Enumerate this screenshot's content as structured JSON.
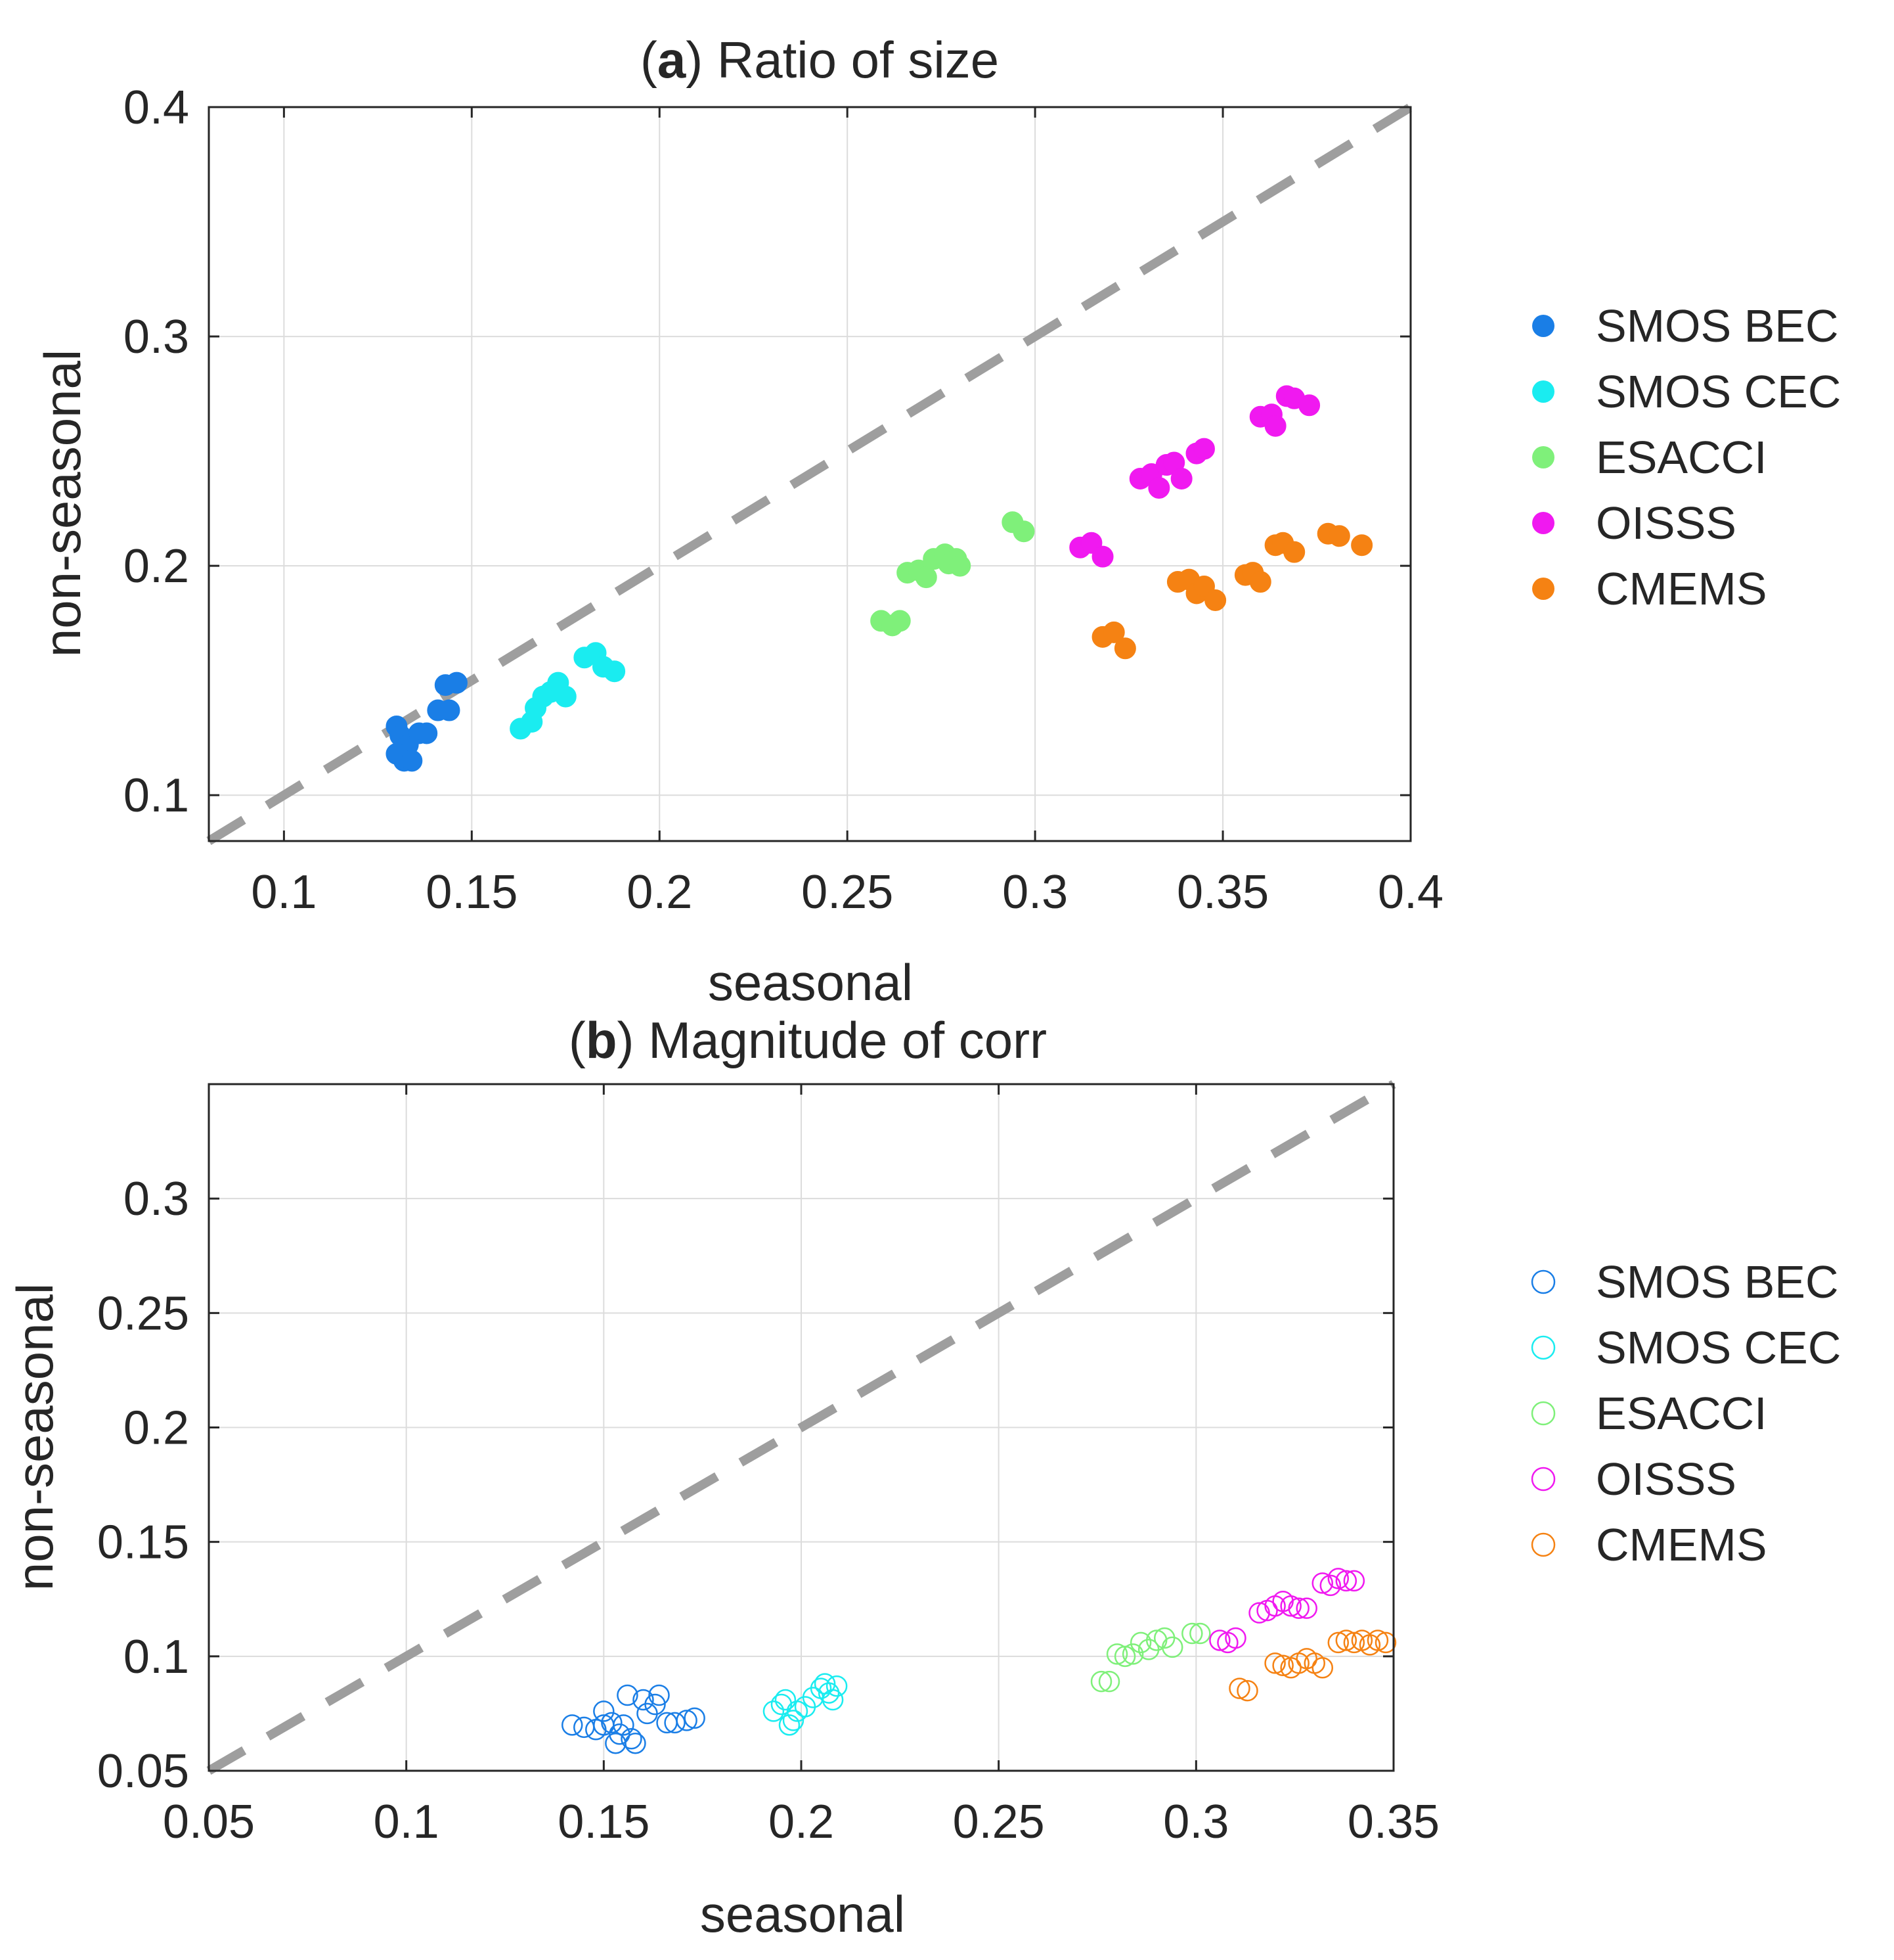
{
  "chart_data": [
    {
      "type": "scatter",
      "title_letter": "a",
      "title_rest": ") Ratio of size",
      "title_open": "(",
      "xlabel": "seasonal",
      "ylabel": "non-seasonal",
      "xlim": [
        0.08,
        0.4
      ],
      "ylim": [
        0.08,
        0.4
      ],
      "xticks": [
        0.1,
        0.15,
        0.2,
        0.25,
        0.3,
        0.35,
        0.4
      ],
      "xtick_labels": [
        "0.1",
        "0.15",
        "0.2",
        "0.25",
        "0.3",
        "0.35",
        "0.4"
      ],
      "yticks": [
        0.1,
        0.2,
        0.3,
        0.4
      ],
      "ytick_labels": [
        "0.1",
        "0.2",
        "0.3",
        "0.4"
      ],
      "grid": true,
      "marker": "filled",
      "reference_line": {
        "style": "dashed",
        "color": "#9e9e9e",
        "slope": 1
      },
      "legend_position": "right",
      "series": [
        {
          "name": "SMOS BEC",
          "color": "#1a7ee6",
          "points": [
            [
              0.13,
              0.13
            ],
            [
              0.131,
              0.126
            ],
            [
              0.133,
              0.122
            ],
            [
              0.13,
              0.118
            ],
            [
              0.132,
              0.115
            ],
            [
              0.134,
              0.115
            ],
            [
              0.136,
              0.127
            ],
            [
              0.138,
              0.127
            ],
            [
              0.141,
              0.137
            ],
            [
              0.144,
              0.137
            ],
            [
              0.143,
              0.148
            ],
            [
              0.146,
              0.149
            ]
          ]
        },
        {
          "name": "SMOS CEC",
          "color": "#1aecf0",
          "points": [
            [
              0.163,
              0.129
            ],
            [
              0.166,
              0.132
            ],
            [
              0.167,
              0.138
            ],
            [
              0.169,
              0.143
            ],
            [
              0.171,
              0.145
            ],
            [
              0.173,
              0.149
            ],
            [
              0.175,
              0.143
            ],
            [
              0.18,
              0.16
            ],
            [
              0.183,
              0.162
            ],
            [
              0.185,
              0.156
            ],
            [
              0.188,
              0.154
            ]
          ]
        },
        {
          "name": "ESACCI",
          "color": "#7ff07a",
          "points": [
            [
              0.259,
              0.176
            ],
            [
              0.262,
              0.174
            ],
            [
              0.264,
              0.176
            ],
            [
              0.266,
              0.197
            ],
            [
              0.269,
              0.198
            ],
            [
              0.271,
              0.195
            ],
            [
              0.273,
              0.203
            ],
            [
              0.276,
              0.205
            ],
            [
              0.277,
              0.201
            ],
            [
              0.279,
              0.203
            ],
            [
              0.28,
              0.2
            ],
            [
              0.294,
              0.219
            ],
            [
              0.297,
              0.215
            ]
          ]
        },
        {
          "name": "OISSS",
          "color": "#f019f0",
          "points": [
            [
              0.312,
              0.208
            ],
            [
              0.315,
              0.21
            ],
            [
              0.318,
              0.204
            ],
            [
              0.328,
              0.238
            ],
            [
              0.331,
              0.24
            ],
            [
              0.333,
              0.234
            ],
            [
              0.335,
              0.244
            ],
            [
              0.337,
              0.245
            ],
            [
              0.339,
              0.238
            ],
            [
              0.343,
              0.249
            ],
            [
              0.345,
              0.251
            ],
            [
              0.36,
              0.265
            ],
            [
              0.363,
              0.266
            ],
            [
              0.364,
              0.261
            ],
            [
              0.367,
              0.274
            ],
            [
              0.369,
              0.273
            ],
            [
              0.373,
              0.27
            ]
          ]
        },
        {
          "name": "CMEMS",
          "color": "#f58213",
          "points": [
            [
              0.318,
              0.169
            ],
            [
              0.321,
              0.171
            ],
            [
              0.324,
              0.164
            ],
            [
              0.338,
              0.193
            ],
            [
              0.341,
              0.194
            ],
            [
              0.343,
              0.188
            ],
            [
              0.345,
              0.191
            ],
            [
              0.348,
              0.185
            ],
            [
              0.356,
              0.196
            ],
            [
              0.358,
              0.197
            ],
            [
              0.36,
              0.193
            ],
            [
              0.364,
              0.209
            ],
            [
              0.366,
              0.21
            ],
            [
              0.369,
              0.206
            ],
            [
              0.378,
              0.214
            ],
            [
              0.381,
              0.213
            ],
            [
              0.387,
              0.209
            ]
          ]
        }
      ]
    },
    {
      "type": "scatter",
      "title_letter": "b",
      "title_rest": ") Magnitude of corr",
      "title_open": "(",
      "xlabel": "seasonal",
      "ylabel": "non-seasonal",
      "xlim": [
        0.05,
        0.35
      ],
      "ylim": [
        0.05,
        0.35
      ],
      "xticks": [
        0.05,
        0.1,
        0.15,
        0.2,
        0.25,
        0.3,
        0.35
      ],
      "xtick_labels": [
        "0.05",
        "0.1",
        "0.15",
        "0.2",
        "0.25",
        "0.3",
        "0.35"
      ],
      "yticks": [
        0.05,
        0.1,
        0.15,
        0.2,
        0.25,
        0.3
      ],
      "ytick_labels": [
        "0.05",
        "0.1",
        "0.15",
        "0.2",
        "0.25",
        "0.3"
      ],
      "grid": true,
      "marker": "open",
      "reference_line": {
        "style": "dashed",
        "color": "#9e9e9e",
        "slope": 1
      },
      "legend_position": "right",
      "series": [
        {
          "name": "SMOS BEC",
          "color": "#1a7ee6",
          "points": [
            [
              0.142,
              0.07
            ],
            [
              0.145,
              0.069
            ],
            [
              0.148,
              0.068
            ],
            [
              0.15,
              0.07
            ],
            [
              0.15,
              0.076
            ],
            [
              0.152,
              0.071
            ],
            [
              0.153,
              0.062
            ],
            [
              0.154,
              0.066
            ],
            [
              0.155,
              0.07
            ],
            [
              0.156,
              0.083
            ],
            [
              0.157,
              0.064
            ],
            [
              0.158,
              0.062
            ],
            [
              0.16,
              0.081
            ],
            [
              0.161,
              0.075
            ],
            [
              0.163,
              0.079
            ],
            [
              0.164,
              0.083
            ],
            [
              0.166,
              0.071
            ],
            [
              0.168,
              0.071
            ],
            [
              0.171,
              0.072
            ],
            [
              0.173,
              0.073
            ]
          ]
        },
        {
          "name": "SMOS CEC",
          "color": "#1aecf0",
          "points": [
            [
              0.193,
              0.076
            ],
            [
              0.195,
              0.079
            ],
            [
              0.196,
              0.081
            ],
            [
              0.197,
              0.07
            ],
            [
              0.198,
              0.072
            ],
            [
              0.199,
              0.076
            ],
            [
              0.201,
              0.078
            ],
            [
              0.203,
              0.082
            ],
            [
              0.205,
              0.086
            ],
            [
              0.206,
              0.088
            ],
            [
              0.207,
              0.084
            ],
            [
              0.208,
              0.081
            ],
            [
              0.209,
              0.087
            ]
          ]
        },
        {
          "name": "ESACCI",
          "color": "#7ff07a",
          "points": [
            [
              0.276,
              0.089
            ],
            [
              0.278,
              0.089
            ],
            [
              0.28,
              0.101
            ],
            [
              0.282,
              0.1
            ],
            [
              0.284,
              0.101
            ],
            [
              0.286,
              0.106
            ],
            [
              0.288,
              0.103
            ],
            [
              0.29,
              0.107
            ],
            [
              0.292,
              0.108
            ],
            [
              0.294,
              0.104
            ],
            [
              0.299,
              0.11
            ],
            [
              0.301,
              0.11
            ]
          ]
        },
        {
          "name": "OISSS",
          "color": "#f019f0",
          "points": [
            [
              0.306,
              0.107
            ],
            [
              0.308,
              0.106
            ],
            [
              0.31,
              0.108
            ],
            [
              0.316,
              0.119
            ],
            [
              0.318,
              0.12
            ],
            [
              0.32,
              0.122
            ],
            [
              0.322,
              0.124
            ],
            [
              0.324,
              0.122
            ],
            [
              0.326,
              0.121
            ],
            [
              0.328,
              0.121
            ],
            [
              0.332,
              0.132
            ],
            [
              0.334,
              0.131
            ],
            [
              0.336,
              0.134
            ],
            [
              0.338,
              0.133
            ],
            [
              0.34,
              0.133
            ]
          ]
        },
        {
          "name": "CMEMS",
          "color": "#f58213",
          "points": [
            [
              0.311,
              0.086
            ],
            [
              0.313,
              0.085
            ],
            [
              0.32,
              0.097
            ],
            [
              0.322,
              0.096
            ],
            [
              0.324,
              0.095
            ],
            [
              0.326,
              0.097
            ],
            [
              0.328,
              0.099
            ],
            [
              0.33,
              0.097
            ],
            [
              0.332,
              0.095
            ],
            [
              0.336,
              0.106
            ],
            [
              0.338,
              0.107
            ],
            [
              0.34,
              0.106
            ],
            [
              0.342,
              0.107
            ],
            [
              0.344,
              0.105
            ],
            [
              0.346,
              0.107
            ],
            [
              0.348,
              0.106
            ]
          ]
        }
      ]
    }
  ]
}
